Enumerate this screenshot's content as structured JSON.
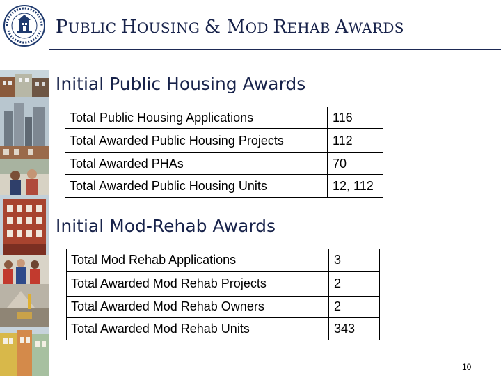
{
  "slide": {
    "title_parts": [
      {
        "text": "P",
        "size": "big"
      },
      {
        "text": "UBLIC ",
        "size": "small"
      },
      {
        "text": "H",
        "size": "big"
      },
      {
        "text": "OUSING ",
        "size": "small"
      },
      {
        "text": "& M",
        "size": "big"
      },
      {
        "text": "OD ",
        "size": "small"
      },
      {
        "text": "R",
        "size": "big"
      },
      {
        "text": "EHAB ",
        "size": "small"
      },
      {
        "text": "A",
        "size": "big"
      },
      {
        "text": "WARDS",
        "size": "small"
      }
    ],
    "page_number": "10"
  },
  "logo": {
    "arc_text": "U.S. DEPARTMENT OF HOUSING AND URBAN DEVELOPMENT"
  },
  "public_housing": {
    "heading": "Initial Public Housing Awards",
    "rows": [
      {
        "label": "Total Public Housing Applications",
        "value": "116"
      },
      {
        "label": "Total Awarded Public Housing Projects",
        "value": "112"
      },
      {
        "label": "Total Awarded PHAs",
        "value": "70"
      },
      {
        "label": "Total Awarded Public Housing Units",
        "value": "12, 112"
      }
    ]
  },
  "mod_rehab": {
    "heading": "Initial Mod-Rehab Awards",
    "rows": [
      {
        "label": "Total Mod Rehab Applications",
        "value": "3"
      },
      {
        "label": "Total Awarded Mod Rehab Projects",
        "value": "2"
      },
      {
        "label": "Total Awarded Mod Rehab Owners",
        "value": "2"
      },
      {
        "label": "Total Awarded Mod Rehab Units",
        "value": "343"
      }
    ]
  },
  "colors": {
    "title": "#17224a",
    "rule": "#1e2a55",
    "logo": "#1f3a6e"
  }
}
